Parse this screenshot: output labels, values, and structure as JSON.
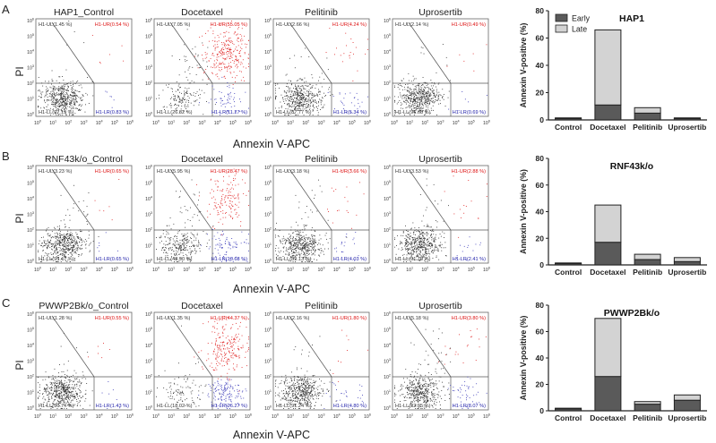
{
  "figure": {
    "x_axis_title": "Annexin V-APC",
    "y_axis_title": "PI",
    "tick_base": "10",
    "tick_exponents": [
      "0",
      "1",
      "2",
      "3",
      "4",
      "5",
      "6"
    ],
    "colors": {
      "ul": "#333333",
      "ur": "#dd1111",
      "ll": "#333333",
      "lr": "#2222aa",
      "dots_black": "#333333",
      "dots_red": "#e02222",
      "dots_blue": "#3a3ab8"
    }
  },
  "panels": [
    {
      "letter": "A",
      "plots": [
        {
          "title": "HAP1_Control",
          "ul": "H1-UL(1.45 %)",
          "ur": "H1-UR(0.54 %)",
          "ll": "H1-LL(97.19 %)",
          "lr": "H1-LR(0.83 %)"
        },
        {
          "title": "Docetaxel",
          "ul": "H1-UL(7.05 %)",
          "ur": "H1-UR(55.05 %)",
          "ll": "H1-LL(26.82 %)",
          "lr": "H1-LR(11.27 %)"
        },
        {
          "title": "Pelitinib",
          "ul": "H1-UL(2.66 %)",
          "ur": "H1-UR(4.24 %)",
          "ll": "H1-LL(87.77 %)",
          "lr": "H1-LR(5.34 %)"
        },
        {
          "title": "Uprosertib",
          "ul": "H1-UL(2.14 %)",
          "ur": "H1-UR(0.49 %)",
          "ll": "H1-LL(96.68 %)",
          "lr": "H1-LR(0.69 %)"
        }
      ]
    },
    {
      "letter": "B",
      "plots": [
        {
          "title": "RNF43k/o_Control",
          "ul": "H1-UL(3.23 %)",
          "ur": "H1-UR(0.65 %)",
          "ll": "H1-LL(95.47 %)",
          "lr": "H1-LR(0.65 %)"
        },
        {
          "title": "Docetaxel",
          "ul": "H1-UL(5.95 %)",
          "ur": "H1-UR(28.47 %)",
          "ll": "H1-LL(48.90 %)",
          "lr": "H1-LR(16.68 %)"
        },
        {
          "title": "Pelitinib",
          "ul": "H1-UL(3.18 %)",
          "ur": "H1-UR(3.66 %)",
          "ll": "H1-LL(89.13 %)",
          "lr": "H1-LR(4.03 %)"
        },
        {
          "title": "Uprosertib",
          "ul": "H1-UL(3.53 %)",
          "ur": "H1-UR(2.88 %)",
          "ll": "H1-LL(91.19 %)",
          "lr": "H1-LR(2.41 %)"
        }
      ]
    },
    {
      "letter": "C",
      "plots": [
        {
          "title": "PWWP2Bk/o_Control",
          "ul": "H1-UL(1.28 %)",
          "ur": "H1-UR(0.55 %)",
          "ll": "H1-LL(96.74 %)",
          "lr": "H1-LR(1.43 %)"
        },
        {
          "title": "Docetaxel",
          "ul": "H1-UL(1.35 %)",
          "ur": "H1-UR(44.37 %)",
          "ll": "H1-LL(18.02 %)",
          "lr": "H1-LR(26.27 %)"
        },
        {
          "title": "Pelitinib",
          "ul": "H1-UL(2.16 %)",
          "ur": "H1-UR(1.80 %)",
          "ll": "H1-LL(91.24 %)",
          "lr": "H1-LR(4.80 %)"
        },
        {
          "title": "Uprosertib",
          "ul": "H1-UL(5.18 %)",
          "ur": "H1-UR(3.80 %)",
          "ll": "H1-LL(82.95 %)",
          "lr": "H1-LR(8.07 %)"
        }
      ]
    }
  ],
  "chart_data": [
    {
      "type": "bar",
      "stacked": true,
      "title": "HAP1",
      "categories": [
        "Control",
        "Docetaxel",
        "Pelitinib",
        "Uprosertib"
      ],
      "series": [
        {
          "name": "Early",
          "color": "#5a5a5a",
          "values": [
            1,
            11,
            5,
            1
          ]
        },
        {
          "name": "Late",
          "color": "#d3d3d3",
          "values": [
            0.5,
            55,
            4,
            0.5
          ]
        }
      ],
      "xlabel": "",
      "ylabel": "Annexin V-positive (%)",
      "ylim": [
        0,
        80
      ],
      "yticks": [
        "0",
        "20",
        "40",
        "60",
        "80"
      ],
      "legend": "top-left"
    },
    {
      "type": "bar",
      "stacked": true,
      "title": "RNF43k/o",
      "categories": [
        "Control",
        "Docetaxel",
        "Pelitinib",
        "Uprosertib"
      ],
      "series": [
        {
          "name": "Early",
          "color": "#5a5a5a",
          "values": [
            1,
            17,
            4,
            2.5
          ]
        },
        {
          "name": "Late",
          "color": "#d3d3d3",
          "values": [
            0.5,
            28,
            4,
            3
          ]
        }
      ],
      "xlabel": "",
      "ylabel": "Annexin V-positive (%)",
      "ylim": [
        0,
        80
      ],
      "yticks": [
        "0",
        "20",
        "40",
        "60",
        "80"
      ]
    },
    {
      "type": "bar",
      "stacked": true,
      "title": "PWWP2Bk/o",
      "categories": [
        "Control",
        "Docetaxel",
        "Pelitinib",
        "Uprosertib"
      ],
      "series": [
        {
          "name": "Early",
          "color": "#5a5a5a",
          "values": [
            1.5,
            26,
            5,
            8
          ]
        },
        {
          "name": "Late",
          "color": "#d3d3d3",
          "values": [
            0.5,
            44,
            2,
            4
          ]
        }
      ],
      "xlabel": "",
      "ylabel": "Annexin V-positive (%)",
      "ylim": [
        0,
        80
      ],
      "yticks": [
        "0",
        "20",
        "40",
        "60",
        "80"
      ]
    }
  ]
}
